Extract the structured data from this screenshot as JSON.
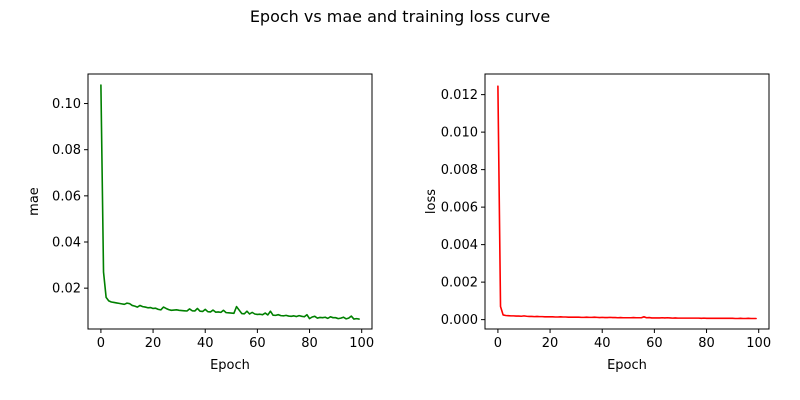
{
  "figure": {
    "title": "Epoch vs mae and training loss curve"
  },
  "chart_data": [
    {
      "type": "line",
      "title": "",
      "xlabel": "Epoch",
      "ylabel": "mae",
      "xlim": [
        -4.95,
        103.95
      ],
      "ylim": [
        0.0023,
        0.1128
      ],
      "xticks": [
        0,
        20,
        40,
        60,
        80,
        100
      ],
      "xtick_labels": [
        "0",
        "20",
        "40",
        "60",
        "80",
        "100"
      ],
      "yticks": [
        0.02,
        0.04,
        0.06,
        0.08,
        0.1
      ],
      "ytick_labels": [
        "0.02",
        "0.04",
        "0.06",
        "0.08",
        "0.10"
      ],
      "grid": false,
      "series": [
        {
          "color": "#008000",
          "x": [
            0,
            1,
            2,
            3,
            4,
            5,
            6,
            7,
            8,
            9,
            10,
            11,
            12,
            13,
            14,
            15,
            16,
            17,
            18,
            19,
            20,
            21,
            22,
            23,
            24,
            25,
            26,
            27,
            28,
            29,
            30,
            31,
            32,
            33,
            34,
            35,
            36,
            37,
            38,
            39,
            40,
            41,
            42,
            43,
            44,
            45,
            46,
            47,
            48,
            49,
            50,
            51,
            52,
            53,
            54,
            55,
            56,
            57,
            58,
            59,
            60,
            61,
            62,
            63,
            64,
            65,
            66,
            67,
            68,
            69,
            70,
            71,
            72,
            73,
            74,
            75,
            76,
            77,
            78,
            79,
            80,
            81,
            82,
            83,
            84,
            85,
            86,
            87,
            88,
            89,
            90,
            91,
            92,
            93,
            94,
            95,
            96,
            97,
            98,
            99
          ],
          "y": [
            0.108,
            0.027,
            0.016,
            0.0145,
            0.014,
            0.0138,
            0.0136,
            0.0134,
            0.0132,
            0.013,
            0.0135,
            0.0133,
            0.0125,
            0.0122,
            0.0118,
            0.0125,
            0.012,
            0.0118,
            0.0115,
            0.0116,
            0.0112,
            0.0113,
            0.0108,
            0.0106,
            0.0118,
            0.0112,
            0.0107,
            0.0104,
            0.0105,
            0.0106,
            0.0104,
            0.0103,
            0.0102,
            0.0101,
            0.011,
            0.0102,
            0.0101,
            0.0112,
            0.01,
            0.0099,
            0.0108,
            0.0098,
            0.0097,
            0.0105,
            0.0096,
            0.0097,
            0.0095,
            0.0104,
            0.0094,
            0.0093,
            0.0092,
            0.0091,
            0.012,
            0.0105,
            0.009,
            0.0089,
            0.01,
            0.0088,
            0.0095,
            0.0088,
            0.0086,
            0.0087,
            0.0085,
            0.0092,
            0.0084,
            0.01,
            0.0083,
            0.0082,
            0.0085,
            0.0081,
            0.008,
            0.0082,
            0.0079,
            0.0078,
            0.008,
            0.0077,
            0.0081,
            0.0078,
            0.0076,
            0.0085,
            0.0068,
            0.0075,
            0.0078,
            0.007,
            0.0073,
            0.0072,
            0.0074,
            0.0069,
            0.0076,
            0.0072,
            0.0072,
            0.0068,
            0.007,
            0.0074,
            0.0067,
            0.007,
            0.0079,
            0.0066,
            0.0068,
            0.0066
          ]
        }
      ]
    },
    {
      "type": "line",
      "title": "",
      "xlabel": "Epoch",
      "ylabel": "loss",
      "xlim": [
        -4.95,
        103.95
      ],
      "ylim": [
        -0.0005,
        0.0131
      ],
      "xticks": [
        0,
        20,
        40,
        60,
        80,
        100
      ],
      "xtick_labels": [
        "0",
        "20",
        "40",
        "60",
        "80",
        "100"
      ],
      "yticks": [
        0.0,
        0.002,
        0.004,
        0.006,
        0.008,
        0.01,
        0.012
      ],
      "ytick_labels": [
        "0.000",
        "0.002",
        "0.004",
        "0.006",
        "0.008",
        "0.010",
        "0.012"
      ],
      "grid": false,
      "series": [
        {
          "color": "#ff0000",
          "x": [
            0,
            1,
            2,
            3,
            4,
            5,
            6,
            7,
            8,
            9,
            10,
            11,
            12,
            13,
            14,
            15,
            16,
            17,
            18,
            19,
            20,
            21,
            22,
            23,
            24,
            25,
            26,
            27,
            28,
            29,
            30,
            31,
            32,
            33,
            34,
            35,
            36,
            37,
            38,
            39,
            40,
            41,
            42,
            43,
            44,
            45,
            46,
            47,
            48,
            49,
            50,
            51,
            52,
            53,
            54,
            55,
            56,
            57,
            58,
            59,
            60,
            61,
            62,
            63,
            64,
            65,
            66,
            67,
            68,
            69,
            70,
            71,
            72,
            73,
            74,
            75,
            76,
            77,
            78,
            79,
            80,
            81,
            82,
            83,
            84,
            85,
            86,
            87,
            88,
            89,
            90,
            91,
            92,
            93,
            94,
            95,
            96,
            97,
            98,
            99
          ],
          "y": [
            0.01245,
            0.0007,
            0.00025,
            0.00022,
            0.00021,
            0.0002,
            0.0002,
            0.00019,
            0.00019,
            0.00018,
            0.0002,
            0.00018,
            0.00017,
            0.00017,
            0.00016,
            0.00017,
            0.00016,
            0.00016,
            0.00015,
            0.00015,
            0.00015,
            0.00015,
            0.00014,
            0.00014,
            0.00015,
            0.00014,
            0.00014,
            0.00013,
            0.00013,
            0.00013,
            0.00013,
            0.00013,
            0.00012,
            0.00012,
            0.00013,
            0.00012,
            0.00012,
            0.00013,
            0.00012,
            0.00011,
            0.00012,
            0.00011,
            0.00011,
            0.00012,
            0.00011,
            0.00011,
            0.0001,
            0.00011,
            0.0001,
            0.0001,
            0.0001,
            0.0001,
            0.00011,
            0.0001,
            0.0001,
            0.0001,
            0.00015,
            0.0001,
            0.00011,
            9e-05,
            9e-05,
            9e-05,
            9e-05,
            0.0001,
            9e-05,
            0.0001,
            9e-05,
            8e-05,
            9e-05,
            8e-05,
            8e-05,
            8e-05,
            8e-05,
            8e-05,
            8e-05,
            8e-05,
            8e-05,
            8e-05,
            7e-05,
            8e-05,
            7e-05,
            7e-05,
            7e-05,
            7e-05,
            7e-05,
            7e-05,
            7e-05,
            7e-05,
            7e-05,
            7e-05,
            7e-05,
            6e-05,
            6e-05,
            7e-05,
            6e-05,
            6e-05,
            7e-05,
            6e-05,
            6e-05,
            6e-05
          ]
        }
      ]
    }
  ]
}
